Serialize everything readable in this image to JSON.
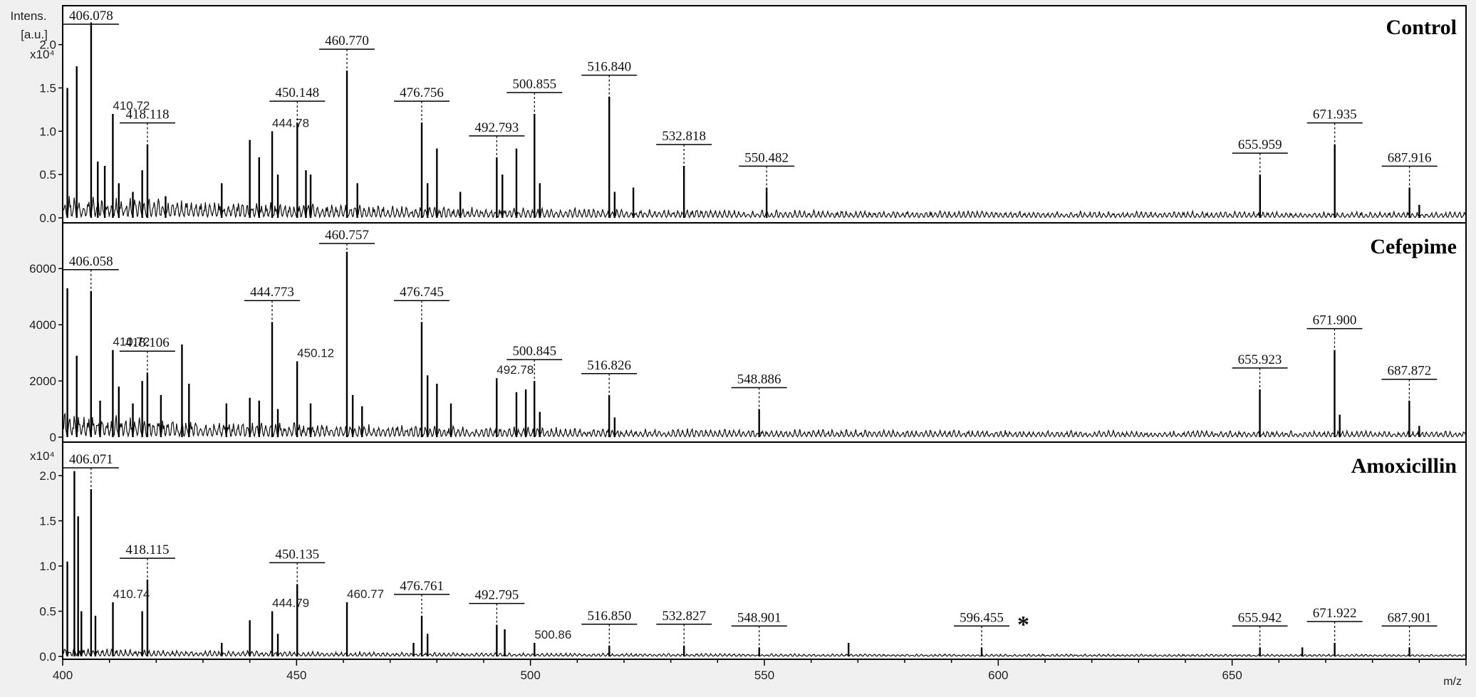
{
  "chart_data": {
    "type": "line",
    "xlabel": "m/z",
    "ylabel_line1": "Intens.",
    "ylabel_line2": "[a.u.]",
    "xlim": [
      400,
      700
    ],
    "x_ticks": [
      400,
      450,
      500,
      550,
      600,
      650
    ],
    "panels": [
      {
        "name": "Control",
        "exponent": "x10⁴",
        "ylim": [
          0,
          2.4
        ],
        "y_ticks": [
          0.0,
          0.5,
          1.0,
          1.5,
          2.0
        ],
        "y_tick_labels": [
          "0.0",
          "0.5",
          "1.0",
          "1.5",
          "2.0"
        ],
        "peaks": [
          [
            401,
            1.5
          ],
          [
            403,
            1.75
          ],
          [
            406.078,
            2.25
          ],
          [
            407.5,
            0.65
          ],
          [
            409,
            0.6
          ],
          [
            410.72,
            1.2
          ],
          [
            412,
            0.4
          ],
          [
            415,
            0.3
          ],
          [
            417,
            0.55
          ],
          [
            418.118,
            0.85
          ],
          [
            422,
            0.25
          ],
          [
            434,
            0.4
          ],
          [
            440,
            0.9
          ],
          [
            442,
            0.7
          ],
          [
            444.78,
            1.0
          ],
          [
            446,
            0.5
          ],
          [
            450.148,
            1.1
          ],
          [
            452,
            0.55
          ],
          [
            453,
            0.5
          ],
          [
            460.77,
            1.7
          ],
          [
            463,
            0.4
          ],
          [
            476.756,
            1.1
          ],
          [
            478,
            0.4
          ],
          [
            480,
            0.8
          ],
          [
            485,
            0.3
          ],
          [
            492.793,
            0.7
          ],
          [
            494,
            0.5
          ],
          [
            497,
            0.8
          ],
          [
            500.855,
            1.2
          ],
          [
            502,
            0.4
          ],
          [
            516.84,
            1.4
          ],
          [
            518,
            0.3
          ],
          [
            522,
            0.35
          ],
          [
            532.818,
            0.6
          ],
          [
            550.482,
            0.35
          ],
          [
            655.959,
            0.5
          ],
          [
            671.935,
            0.85
          ],
          [
            687.916,
            0.35
          ],
          [
            690,
            0.15
          ]
        ],
        "labels": [
          {
            "x": 406.078,
            "text": "406.078",
            "box": true
          },
          {
            "x": 410.72,
            "text": "410.72",
            "box": false
          },
          {
            "x": 418.118,
            "text": "418.118",
            "box": true
          },
          {
            "x": 444.78,
            "text": "444.78",
            "box": false
          },
          {
            "x": 450.148,
            "text": "450.148",
            "box": true
          },
          {
            "x": 460.77,
            "text": "460.770",
            "box": true
          },
          {
            "x": 476.756,
            "text": "476.756",
            "box": true
          },
          {
            "x": 492.793,
            "text": "492.793",
            "box": true
          },
          {
            "x": 500.855,
            "text": "500.855",
            "box": true
          },
          {
            "x": 516.84,
            "text": "516.840",
            "box": true
          },
          {
            "x": 532.818,
            "text": "532.818",
            "box": true
          },
          {
            "x": 550.482,
            "text": "550.482",
            "box": true
          },
          {
            "x": 655.959,
            "text": "655.959",
            "box": true
          },
          {
            "x": 671.935,
            "text": "671.935",
            "box": true
          },
          {
            "x": 687.916,
            "text": "687.916",
            "box": true
          }
        ]
      },
      {
        "name": "Cefepime",
        "exponent": "",
        "ylim": [
          0,
          7400
        ],
        "y_ticks": [
          0,
          2000,
          4000,
          6000
        ],
        "y_tick_labels": [
          "0",
          "2000",
          "4000",
          "6000"
        ],
        "peaks": [
          [
            401,
            5300
          ],
          [
            403,
            2900
          ],
          [
            406.058,
            5200
          ],
          [
            408,
            1300
          ],
          [
            410.72,
            3100
          ],
          [
            412,
            1800
          ],
          [
            415,
            1200
          ],
          [
            417,
            2000
          ],
          [
            418.106,
            2300
          ],
          [
            421,
            1500
          ],
          [
            425.5,
            3300
          ],
          [
            427,
            1900
          ],
          [
            435,
            1200
          ],
          [
            440,
            1400
          ],
          [
            442,
            1300
          ],
          [
            444.773,
            4100
          ],
          [
            446,
            1000
          ],
          [
            450.12,
            2700
          ],
          [
            453,
            1200
          ],
          [
            460.757,
            6600
          ],
          [
            462,
            1500
          ],
          [
            464,
            1100
          ],
          [
            476.745,
            4100
          ],
          [
            478,
            2200
          ],
          [
            480,
            1900
          ],
          [
            483,
            1200
          ],
          [
            492.78,
            2100
          ],
          [
            497,
            1600
          ],
          [
            499,
            1700
          ],
          [
            500.845,
            2000
          ],
          [
            502,
            900
          ],
          [
            516.826,
            1500
          ],
          [
            518,
            700
          ],
          [
            548.886,
            1000
          ],
          [
            655.923,
            1700
          ],
          [
            671.9,
            3100
          ],
          [
            673,
            800
          ],
          [
            687.872,
            1300
          ],
          [
            690,
            400
          ]
        ],
        "labels": [
          {
            "x": 406.058,
            "text": "406.058",
            "box": true
          },
          {
            "x": 410.72,
            "text": "410.72",
            "box": false
          },
          {
            "x": 418.106,
            "text": "418.106",
            "box": true
          },
          {
            "x": 444.773,
            "text": "444.773",
            "box": true
          },
          {
            "x": 450.12,
            "text": "450.12",
            "box": false
          },
          {
            "x": 460.757,
            "text": "460.757",
            "box": true
          },
          {
            "x": 476.745,
            "text": "476.745",
            "box": true
          },
          {
            "x": 492.78,
            "text": "492.78",
            "box": false
          },
          {
            "x": 500.845,
            "text": "500.845",
            "box": true
          },
          {
            "x": 516.826,
            "text": "516.826",
            "box": true
          },
          {
            "x": 548.886,
            "text": "548.886",
            "box": true
          },
          {
            "x": 655.923,
            "text": "655.923",
            "box": true
          },
          {
            "x": 671.9,
            "text": "671.900",
            "box": true
          },
          {
            "x": 687.872,
            "text": "687.872",
            "box": true
          }
        ]
      },
      {
        "name": "Amoxicillin",
        "exponent": "x10⁴",
        "ylim": [
          0,
          2.3
        ],
        "y_ticks": [
          0.0,
          0.5,
          1.0,
          1.5,
          2.0
        ],
        "y_tick_labels": [
          "0.0",
          "0.5",
          "1.0",
          "1.5",
          "2.0"
        ],
        "peaks": [
          [
            401,
            1.05
          ],
          [
            402.5,
            2.05
          ],
          [
            403.3,
            1.55
          ],
          [
            404,
            0.5
          ],
          [
            406.071,
            1.85
          ],
          [
            407,
            0.45
          ],
          [
            410.74,
            0.6
          ],
          [
            417,
            0.5
          ],
          [
            418.115,
            0.85
          ],
          [
            434,
            0.15
          ],
          [
            440,
            0.4
          ],
          [
            444.79,
            0.5
          ],
          [
            446,
            0.25
          ],
          [
            450.135,
            0.8
          ],
          [
            460.77,
            0.6
          ],
          [
            475,
            0.15
          ],
          [
            476.761,
            0.45
          ],
          [
            478,
            0.25
          ],
          [
            492.795,
            0.35
          ],
          [
            494.5,
            0.3
          ],
          [
            500.86,
            0.15
          ],
          [
            516.85,
            0.12
          ],
          [
            532.827,
            0.12
          ],
          [
            548.901,
            0.1
          ],
          [
            568,
            0.15
          ],
          [
            596.455,
            0.1
          ],
          [
            655.942,
            0.1
          ],
          [
            665,
            0.1
          ],
          [
            671.922,
            0.15
          ],
          [
            687.901,
            0.1
          ]
        ],
        "labels": [
          {
            "x": 406.071,
            "text": "406.071",
            "box": true
          },
          {
            "x": 410.74,
            "text": "410.74",
            "box": false
          },
          {
            "x": 418.115,
            "text": "418.115",
            "box": true
          },
          {
            "x": 444.79,
            "text": "444.79",
            "box": false
          },
          {
            "x": 450.135,
            "text": "450.135",
            "box": true
          },
          {
            "x": 460.77,
            "text": "460.77",
            "box": false
          },
          {
            "x": 476.761,
            "text": "476.761",
            "box": true
          },
          {
            "x": 492.795,
            "text": "492.795",
            "box": true
          },
          {
            "x": 500.86,
            "text": "500.86",
            "box": false
          },
          {
            "x": 516.85,
            "text": "516.850",
            "box": true
          },
          {
            "x": 532.827,
            "text": "532.827",
            "box": true
          },
          {
            "x": 548.901,
            "text": "548.901",
            "box": true
          },
          {
            "x": 596.455,
            "text": "596.455",
            "box": true
          },
          {
            "x": 655.942,
            "text": "655.942",
            "box": true
          },
          {
            "x": 671.922,
            "text": "671.922",
            "box": true
          },
          {
            "x": 687.901,
            "text": "687.901",
            "box": true
          }
        ],
        "annotation": {
          "x": 596.455,
          "text": "*"
        }
      }
    ]
  }
}
